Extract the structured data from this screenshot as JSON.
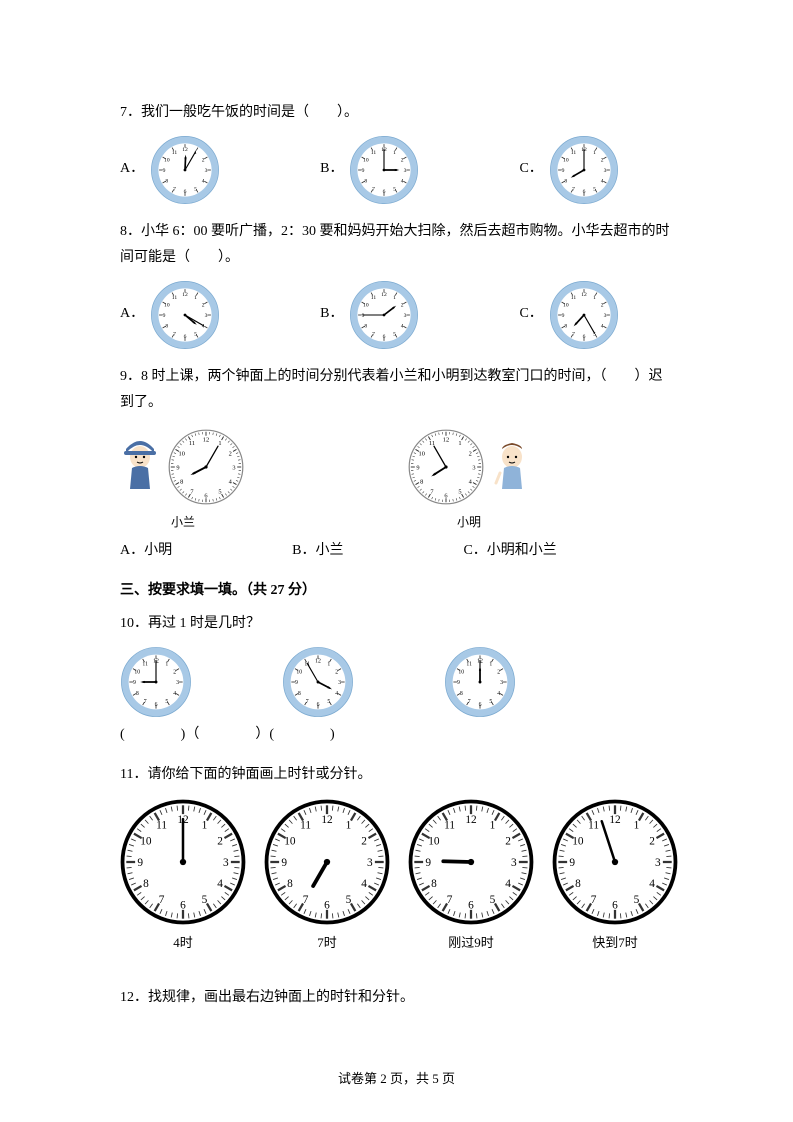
{
  "colors": {
    "text": "#000000",
    "bg": "#ffffff",
    "clock_fancy_outer": "#a8c9e6",
    "clock_fancy_border": "#7aa9d0",
    "clock_face": "#ffffff",
    "clock_tick": "#333333",
    "clock_hand": "#000000",
    "clock_bold_border": "#000000",
    "person_blue": "#4a6fa5",
    "person_skin": "#f8e2c9",
    "person_brown": "#7a4a2a"
  },
  "q7": {
    "text": "7．我们一般吃午饭的时间是（　　）。",
    "labels": {
      "a": "A．",
      "b": "B．",
      "c": "C．"
    },
    "clocks": {
      "a": {
        "hour": 12,
        "minute": 5
      },
      "b": {
        "hour": 3,
        "minute": 0
      },
      "c": {
        "hour": 8,
        "minute": 0
      }
    }
  },
  "q8": {
    "text": "8．小华 6：00 要听广播，2：30 要和妈妈开始大扫除，然后去超市购物。小华去超市的时间可能是（　　）。",
    "labels": {
      "a": "A．",
      "b": "B．",
      "c": "C．"
    },
    "clocks": {
      "a": {
        "hour": 4,
        "minute": 20
      },
      "b": {
        "hour": 1,
        "minute": 45
      },
      "c": {
        "hour": 7,
        "minute": 25
      }
    }
  },
  "q9": {
    "text": "9．8 时上课，两个钟面上的时间分别代表着小兰和小明到达教室门口的时间，（　　）迟到了。",
    "lan_name": "小兰",
    "ming_name": "小明",
    "lan_clock": {
      "hour": 8,
      "minute": 5
    },
    "ming_clock": {
      "hour": 7,
      "minute": 55
    },
    "options": {
      "a": "A．小明",
      "b": "B．小兰",
      "c": "C．小明和小兰"
    }
  },
  "section3": "三、按要求填一填。（共 27 分）",
  "q10": {
    "text": "10．再过 1 时是几时？",
    "clocks": {
      "a": {
        "hour": 9,
        "minute": 0
      },
      "b": {
        "hour": 3,
        "minute": 55
      },
      "c": {
        "hour": 12,
        "minute": 0
      }
    },
    "answers": "(　　　　)（　　　　）(　　　　)"
  },
  "q11": {
    "text": "11．请你给下面的钟面画上时针或分针。",
    "items": {
      "a": {
        "label": "4时",
        "minute": 0,
        "hour": null
      },
      "b": {
        "label": "7时",
        "minute": null,
        "hour": 7
      },
      "c": {
        "label": "刚过9时",
        "minute": null,
        "hour": 9.05
      },
      "d": {
        "label": "快到7时",
        "minute": 57,
        "hour": null
      }
    }
  },
  "q12": {
    "text": "12．找规律，画出最右边钟面上的时针和分针。"
  },
  "footer": "试卷第 2 页，共 5 页"
}
